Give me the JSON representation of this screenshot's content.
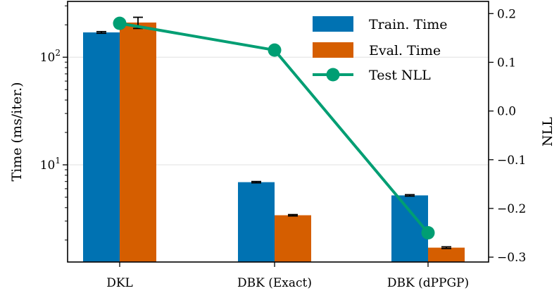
{
  "chart_data": {
    "type": "bar",
    "title": "",
    "categories": [
      "DKL",
      "DBK (Exact)",
      "DBK (dPPGP)"
    ],
    "series": [
      {
        "name": "Train. Time",
        "color": "#0072b2",
        "values": [
          170,
          6.9,
          5.2
        ],
        "errors": [
          3,
          0.1,
          0.08
        ]
      },
      {
        "name": "Eval. Time",
        "color": "#d55e00",
        "values": [
          210,
          3.4,
          1.7
        ],
        "errors": [
          25,
          0.05,
          0.03
        ]
      }
    ],
    "line_series": {
      "name": "Test NLL",
      "color": "#009e73",
      "values": [
        0.18,
        0.125,
        -0.25
      ]
    },
    "ylabel": "Time (ms/iter.)",
    "ylabel_right": "NLL",
    "y_scale": "log",
    "ylim": [
      1.25,
      330
    ],
    "ylim_right": [
      -0.31,
      0.225
    ],
    "yticks_left": [
      {
        "value": 10,
        "base": "10",
        "exp": "1"
      },
      {
        "value": 100,
        "base": "10",
        "exp": "2"
      }
    ],
    "yticks_right": [
      {
        "value": 0.2,
        "label": "0.2"
      },
      {
        "value": 0.1,
        "label": "0.1"
      },
      {
        "value": 0.0,
        "label": "0.0"
      },
      {
        "value": -0.1,
        "label": "−0.1"
      },
      {
        "value": -0.2,
        "label": "−0.2"
      },
      {
        "value": -0.3,
        "label": "−0.3"
      }
    ],
    "grid": true,
    "legend_position": "top-right"
  }
}
